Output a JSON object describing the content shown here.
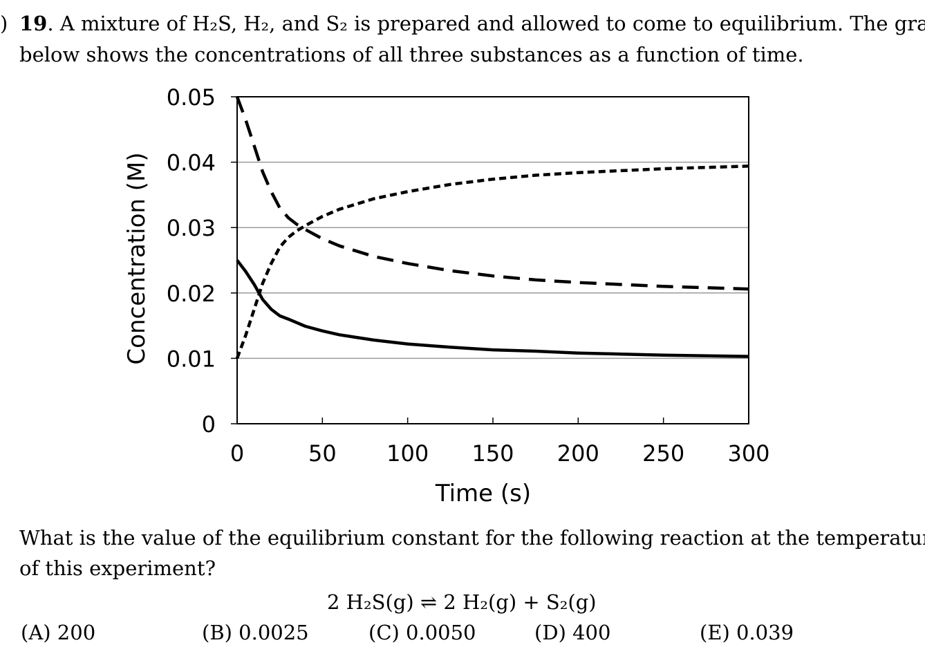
{
  "question": {
    "number": "19",
    "line1_rest": ". A mixture of H₂S, H₂, and S₂ is prepared and allowed to come to equilibrium. The graph",
    "line2": "below shows the concentrations of all three substances as a function of time."
  },
  "prompt": {
    "line1": "What is the value of the equilibrium constant for the following reaction at the temperature",
    "line2": "of this experiment?"
  },
  "equation": "2 H₂S(g) ⇌ 2 H₂(g) + S₂(g)",
  "choices": {
    "a": "(A) 200",
    "b": "(B) 0.0025",
    "c": "(C) 0.0050",
    "d": "(D) 400",
    "e": "(E) 0.039"
  },
  "chart_data": {
    "type": "line",
    "title": "",
    "xlabel": "Time (s)",
    "ylabel": "Concentration (M)",
    "xlim": [
      0,
      300
    ],
    "ylim": [
      0,
      0.05
    ],
    "x_ticks": [
      0,
      50,
      100,
      150,
      200,
      250,
      300
    ],
    "x_tick_labels": [
      "0",
      "50",
      "100",
      "150",
      "200",
      "250",
      "300"
    ],
    "y_ticks": [
      0,
      0.01,
      0.02,
      0.03,
      0.04,
      0.05
    ],
    "y_tick_labels": [
      "0",
      "0.01",
      "0.02",
      "0.03",
      "0.04",
      "0.05"
    ],
    "grid": true,
    "series": [
      {
        "name": "long-dash",
        "style": "long-dash",
        "x": [
          0,
          5,
          10,
          15,
          20,
          25,
          30,
          35,
          40,
          50,
          60,
          80,
          100,
          125,
          150,
          175,
          200,
          250,
          300
        ],
        "values": [
          0.05,
          0.0465,
          0.0425,
          0.0385,
          0.0355,
          0.033,
          0.0315,
          0.0305,
          0.0297,
          0.0283,
          0.0272,
          0.0256,
          0.0245,
          0.0234,
          0.0226,
          0.022,
          0.0216,
          0.021,
          0.0206
        ]
      },
      {
        "name": "short-dash",
        "style": "short-dash",
        "x": [
          0,
          5,
          10,
          15,
          20,
          25,
          30,
          35,
          40,
          50,
          60,
          80,
          100,
          125,
          150,
          175,
          200,
          250,
          300
        ],
        "values": [
          0.01,
          0.0135,
          0.0175,
          0.0215,
          0.0245,
          0.027,
          0.0285,
          0.0295,
          0.0303,
          0.0317,
          0.0328,
          0.0344,
          0.0355,
          0.0366,
          0.0374,
          0.038,
          0.0384,
          0.039,
          0.0394
        ]
      },
      {
        "name": "solid",
        "style": "solid",
        "x": [
          0,
          5,
          10,
          15,
          20,
          25,
          30,
          40,
          50,
          60,
          80,
          100,
          125,
          150,
          175,
          200,
          250,
          300
        ],
        "values": [
          0.025,
          0.0233,
          0.0213,
          0.019,
          0.0175,
          0.0165,
          0.016,
          0.0149,
          0.0142,
          0.0136,
          0.0128,
          0.0122,
          0.0117,
          0.0113,
          0.0111,
          0.0108,
          0.0105,
          0.0103
        ]
      }
    ]
  }
}
